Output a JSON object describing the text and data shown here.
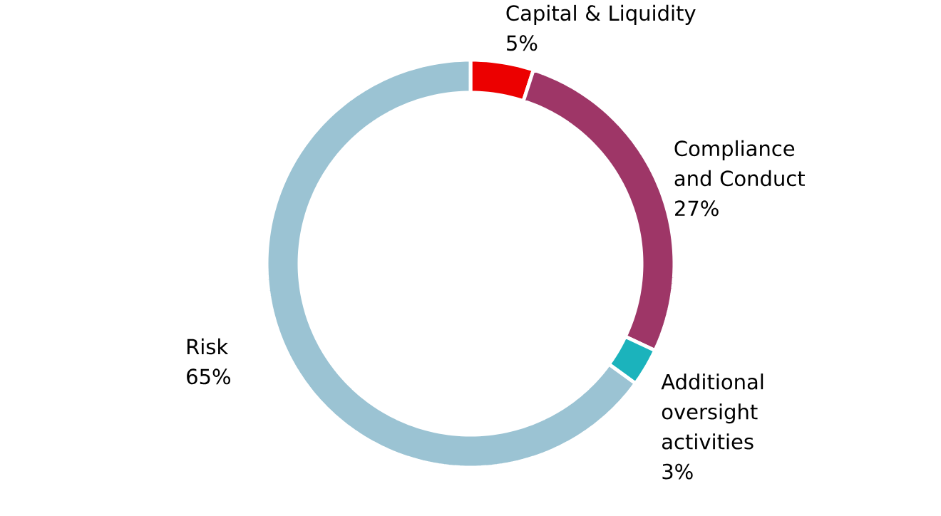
{
  "chart_data": {
    "type": "donut",
    "categories": [
      "Capital & Liquidity",
      "Compliance and Conduct",
      "Additional oversight activities",
      "Risk"
    ],
    "values": [
      5,
      27,
      3,
      65
    ],
    "value_labels": [
      "5%",
      "27%",
      "3%",
      "65%"
    ],
    "colors": [
      "#ec0000",
      "#9e3667",
      "#1bb3bc",
      "#9bc3d3"
    ]
  }
}
